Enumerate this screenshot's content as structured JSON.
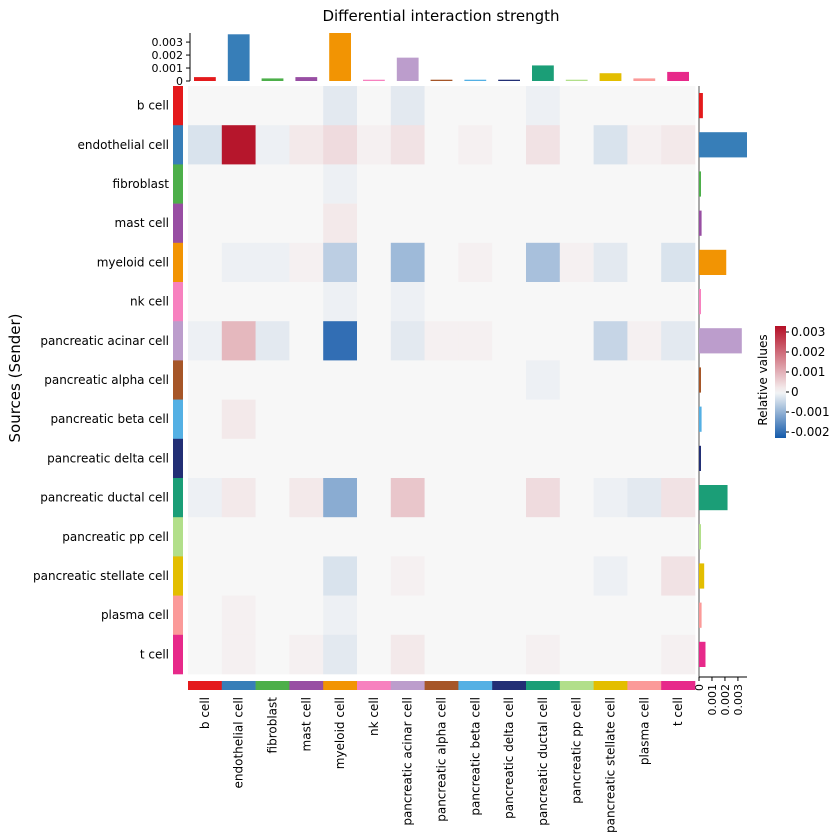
{
  "chart_data": {
    "type": "heatmap",
    "title": "Differential interaction strength",
    "ylabel": "Sources (Sender)",
    "legend_title": "Relative values",
    "legend_ticks": [
      0.003,
      0.002,
      0.001,
      0,
      -0.001,
      -0.002
    ],
    "legend_tick_labels": [
      "0.003",
      "0.002",
      "0.001",
      "0",
      "-0.001",
      "-0.002"
    ],
    "legend_range": [
      -0.0023,
      0.0033
    ],
    "legend_placement": "right",
    "rows": [
      "b cell",
      "endothelial cell",
      "fibroblast",
      "mast cell",
      "myeloid cell",
      "nk cell",
      "pancreatic acinar cell",
      "pancreatic alpha cell",
      "pancreatic beta cell",
      "pancreatic delta cell",
      "pancreatic ductal cell",
      "pancreatic pp cell",
      "pancreatic stellate cell",
      "plasma cell",
      "t cell"
    ],
    "columns": [
      "b cell",
      "endothelial cell",
      "fibroblast",
      "mast cell",
      "myeloid cell",
      "nk cell",
      "pancreatic acinar cell",
      "pancreatic alpha cell",
      "pancreatic beta cell",
      "pancreatic delta cell",
      "pancreatic ductal cell",
      "pancreatic pp cell",
      "pancreatic stellate cell",
      "plasma cell",
      "t cell"
    ],
    "group_colors": [
      "#E41A1C",
      "#377EB8",
      "#4DAF4A",
      "#984EA3",
      "#F29403",
      "#F781BF",
      "#BC9DCC",
      "#A65628",
      "#54B0E4",
      "#222F75",
      "#1B9E77",
      "#B2DF8A",
      "#E3BE00",
      "#FB9A99",
      "#E7298A"
    ],
    "values": [
      [
        0,
        0,
        0,
        0,
        -0.0002,
        0,
        -0.0002,
        0,
        0,
        0,
        -0.0001,
        0,
        0,
        0,
        0
      ],
      [
        -0.0003,
        0.0032,
        -0.0001,
        0.0002,
        0.0004,
        0.0001,
        0.0003,
        0,
        0.0001,
        0,
        0.0003,
        0,
        -0.0003,
        0.0001,
        0.0002
      ],
      [
        0,
        0,
        0,
        0,
        -0.0001,
        0,
        0,
        0,
        0,
        0,
        0,
        0,
        0,
        0,
        0
      ],
      [
        0,
        0,
        0,
        0,
        0.0002,
        0,
        0,
        0,
        0,
        0,
        0,
        0,
        0,
        0,
        0
      ],
      [
        0,
        -0.0001,
        -0.0001,
        0.0001,
        -0.0006,
        0,
        -0.0009,
        0,
        0.0001,
        0,
        -0.0008,
        0.0001,
        -0.0002,
        0,
        -0.0003
      ],
      [
        0,
        0,
        0,
        0,
        -0.0001,
        0,
        -0.0001,
        0,
        0,
        0,
        0,
        0,
        0,
        0,
        0
      ],
      [
        -0.0001,
        0.0009,
        -0.0002,
        0,
        -0.002,
        0,
        -0.0002,
        0.0001,
        0.0001,
        0,
        0,
        0,
        -0.0005,
        0.0001,
        -0.0002
      ],
      [
        0,
        0,
        0,
        0,
        0,
        0,
        0,
        0,
        0,
        0,
        -0.0001,
        0,
        0,
        0,
        0
      ],
      [
        0,
        0.0002,
        0,
        0,
        0,
        0,
        0,
        0,
        0,
        0,
        0,
        0,
        0,
        0,
        0
      ],
      [
        0,
        0,
        0,
        0,
        0,
        0,
        0,
        0,
        0,
        0,
        0,
        0,
        0,
        0,
        0
      ],
      [
        -0.0001,
        0.0002,
        0,
        0.0002,
        -0.0011,
        0,
        0.0007,
        0,
        0,
        0,
        0.0004,
        0,
        -0.0001,
        -0.0002,
        0.0003
      ],
      [
        0,
        0,
        0,
        0,
        0,
        0,
        0,
        0,
        0,
        0,
        0,
        0,
        0,
        0,
        0
      ],
      [
        0,
        0,
        0,
        0,
        -0.0003,
        0,
        0.0001,
        0,
        0,
        0,
        0,
        0,
        -0.0001,
        0,
        0.0003
      ],
      [
        0,
        0.0001,
        0,
        0,
        -0.0001,
        0,
        0,
        0,
        0,
        0,
        0,
        0,
        0,
        0,
        0
      ],
      [
        0,
        0.0001,
        0,
        0.0001,
        -0.0002,
        0,
        0.0002,
        0,
        0,
        0,
        0.0001,
        0,
        0,
        0,
        0.0001
      ]
    ],
    "top_bar": {
      "values": [
        0.0003,
        0.0036,
        0.0002,
        0.0003,
        0.0037,
        0.0001,
        0.0018,
        0.0001,
        0.0001,
        0.0001,
        0.0012,
        0.0001,
        0.0006,
        0.0002,
        0.0007
      ],
      "ticks": [
        0,
        0.001,
        0.002,
        0.003
      ],
      "tick_labels": [
        "0",
        "0.001",
        "0.002",
        "0.003"
      ],
      "range": [
        0,
        0.0037
      ]
    },
    "right_bar": {
      "values": [
        0.0003,
        0.0037,
        0.0001,
        0.0002,
        0.0021,
        0.0001,
        0.0033,
        0.0001,
        0.0002,
        0.0001,
        0.0022,
        0.0001,
        0.0004,
        0.0002,
        0.0005
      ],
      "ticks": [
        0,
        0.001,
        0.002,
        0.003
      ],
      "tick_labels": [
        "0",
        "0.001",
        "0.002",
        "0.003"
      ],
      "range": [
        0,
        0.0037
      ]
    }
  }
}
